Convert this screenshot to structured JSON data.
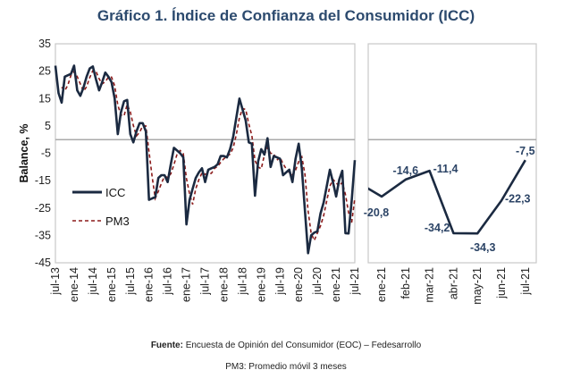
{
  "title": "Gráfico 1. Índice de Confianza del Consumidor (ICC)",
  "footer": {
    "source_label": "Fuente:",
    "source_text": " Encuesta de Opinión del Consumidor (EOC) – Fedesarrollo",
    "note": "PM3: Promedio móvil 3 meses"
  },
  "colors": {
    "icc": "#1b2a41",
    "pm3": "#8b1a1a",
    "title": "#2c4a6e",
    "labels": "#2c4466"
  },
  "chart_data": [
    {
      "type": "line",
      "ylabel": "Balance, %",
      "ylim": [
        -45,
        35
      ],
      "yticks": [
        35,
        25,
        15,
        5,
        -5,
        -15,
        -25,
        -35,
        -45
      ],
      "x_start": "jul-13",
      "x_end": "jul-21",
      "frequency": "monthly",
      "xtick_labels": [
        "jul-13",
        "ene-14",
        "jul-14",
        "ene-15",
        "jul-15",
        "ene-16",
        "jul-16",
        "ene-17",
        "jul-17",
        "ene-18",
        "jul-18",
        "ene-19",
        "jul-19",
        "ene-20",
        "jul-20",
        "ene-21",
        "jul-21"
      ],
      "legend": {
        "placement": "bottom-left",
        "entries": [
          "ICC",
          "PM3"
        ]
      },
      "grid": false,
      "series": [
        {
          "name": "ICC",
          "style": "solid",
          "values": [
            27,
            17,
            13.5,
            23,
            23.5,
            24,
            27,
            18,
            16,
            19,
            23,
            26,
            26.7,
            22,
            18,
            21,
            24.5,
            23,
            21,
            15,
            2,
            10,
            14,
            14.5,
            2,
            -1,
            3,
            6,
            6,
            3,
            -22,
            -21.5,
            -21,
            -14,
            -13,
            -13,
            -15.5,
            -9,
            -3,
            -4,
            -5,
            -6.5,
            -31,
            -22,
            -18,
            -14,
            -12,
            -10.5,
            -15.5,
            -11,
            -10.5,
            -10,
            -9,
            -6,
            -6,
            -6.5,
            -3.5,
            1,
            8,
            15,
            11,
            7,
            -1,
            -1.5,
            -20.5,
            -8,
            -3.5,
            -5.5,
            0.5,
            -10,
            -6,
            -6.5,
            -7,
            -13,
            -12,
            -11,
            -15.5,
            -7,
            -1.5,
            -10.5,
            -26,
            -41.5,
            -35,
            -34,
            -33.5,
            -27,
            -23,
            -17,
            -11,
            -15.6,
            -20.8,
            -14.6,
            -11.4,
            -34.2,
            -34.3,
            -22.3,
            -7.5
          ]
        },
        {
          "name": "PM3",
          "style": "dashed",
          "definition": "3-month moving average of ICC"
        }
      ]
    },
    {
      "type": "line",
      "ylim": [
        -45,
        35
      ],
      "categories": [
        "ene-21",
        "feb-21",
        "mar-21",
        "abr-21",
        "may-21",
        "jun-21",
        "jul-21"
      ],
      "values": [
        -20.8,
        -14.6,
        -11.4,
        -34.2,
        -34.3,
        -22.3,
        -7.5
      ],
      "data_labels": [
        "-20,8",
        "-14,6",
        "-11,4",
        "-34,2",
        "-34,3",
        "-22,3",
        "-7,5"
      ],
      "prior_value": -15.6
    }
  ]
}
